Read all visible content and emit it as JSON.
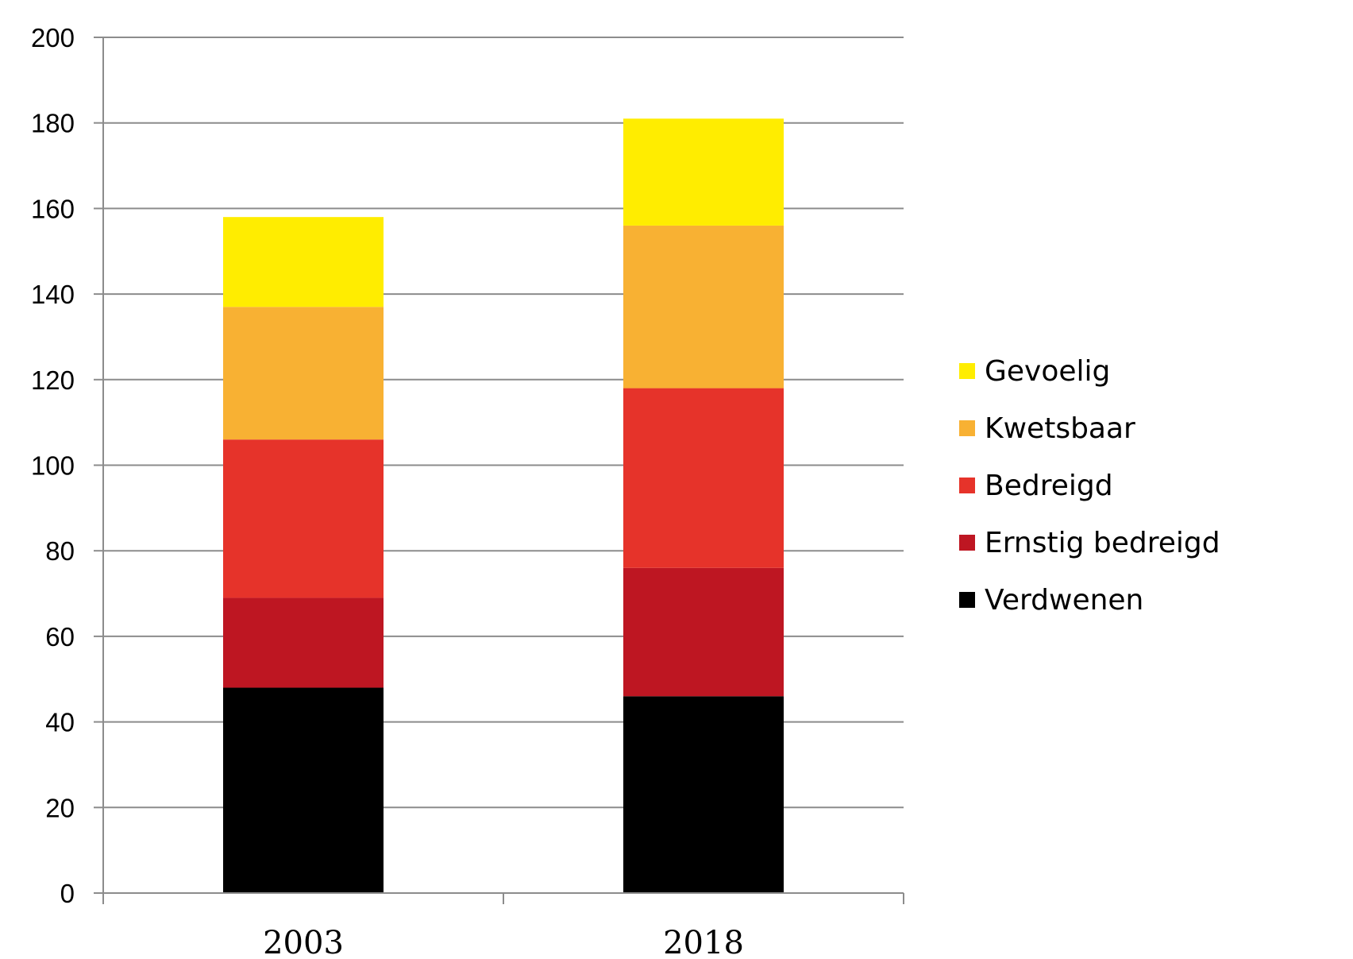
{
  "chart_data": {
    "type": "bar",
    "stacked": true,
    "categories": [
      "2003",
      "2018"
    ],
    "series": [
      {
        "name": "Verdwenen",
        "values": [
          48,
          46
        ],
        "color": "#000000"
      },
      {
        "name": "Ernstig bedreigd",
        "values": [
          21,
          30
        ],
        "color": "#be1622"
      },
      {
        "name": "Bedreigd",
        "values": [
          37,
          42
        ],
        "color": "#e6332a"
      },
      {
        "name": "Kwetsbaar",
        "values": [
          31,
          38
        ],
        "color": "#f8b133"
      },
      {
        "name": "Gevoelig",
        "values": [
          21,
          25
        ],
        "color": "#ffed00"
      }
    ],
    "yticks": [
      "0",
      "20",
      "40",
      "60",
      "80",
      "100",
      "120",
      "140",
      "160",
      "180",
      "200"
    ],
    "ylim": [
      0,
      200
    ],
    "grid": true,
    "legend": "right",
    "legend_order": [
      "Gevoelig",
      "Kwetsbaar",
      "Bedreigd",
      "Ernstig bedreigd",
      "Verdwenen"
    ]
  }
}
